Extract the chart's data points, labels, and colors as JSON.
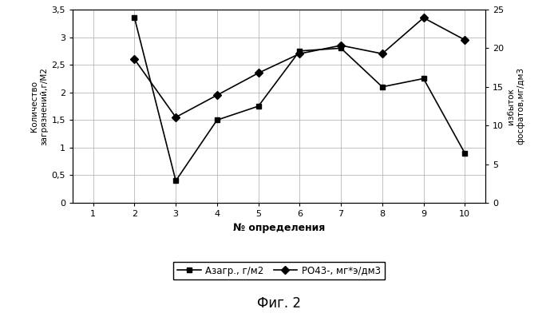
{
  "x": [
    1,
    2,
    3,
    4,
    5,
    6,
    7,
    8,
    9,
    10
  ],
  "azagr": [
    null,
    3.35,
    0.4,
    1.5,
    1.75,
    2.75,
    2.8,
    2.1,
    2.25,
    0.9
  ],
  "po43_left": [
    null,
    2.6,
    1.55,
    1.95,
    2.35,
    2.7,
    2.85,
    2.7,
    3.35,
    2.95
  ],
  "xlabel": "№ определения",
  "ylabel_left": "Количество\nзагрязнений,г/М2",
  "ylabel_right": "избыток\nфосфатов,мг/дм3",
  "ylim_left": [
    0,
    3.5
  ],
  "ylim_right": [
    0,
    25
  ],
  "yticks_left": [
    0,
    0.5,
    1.0,
    1.5,
    2.0,
    2.5,
    3.0,
    3.5
  ],
  "ytick_labels_left": [
    "0",
    "0,5",
    "1",
    "1,5",
    "2",
    "2,5",
    "3",
    "3,5"
  ],
  "yticks_right": [
    0,
    5,
    10,
    15,
    20,
    25
  ],
  "xticks": [
    1,
    2,
    3,
    4,
    5,
    6,
    7,
    8,
    9,
    10
  ],
  "legend_azagr": "Азагр., г/м2",
  "legend_po43": "РО43-, мг*э/дм3",
  "caption": "Фиг. 2",
  "line_color": "#000000",
  "marker_azagr": "s",
  "marker_po43": "D",
  "markersize": 5,
  "linewidth": 1.2,
  "grid_color": "#aaaaaa",
  "bg_color": "#ffffff"
}
